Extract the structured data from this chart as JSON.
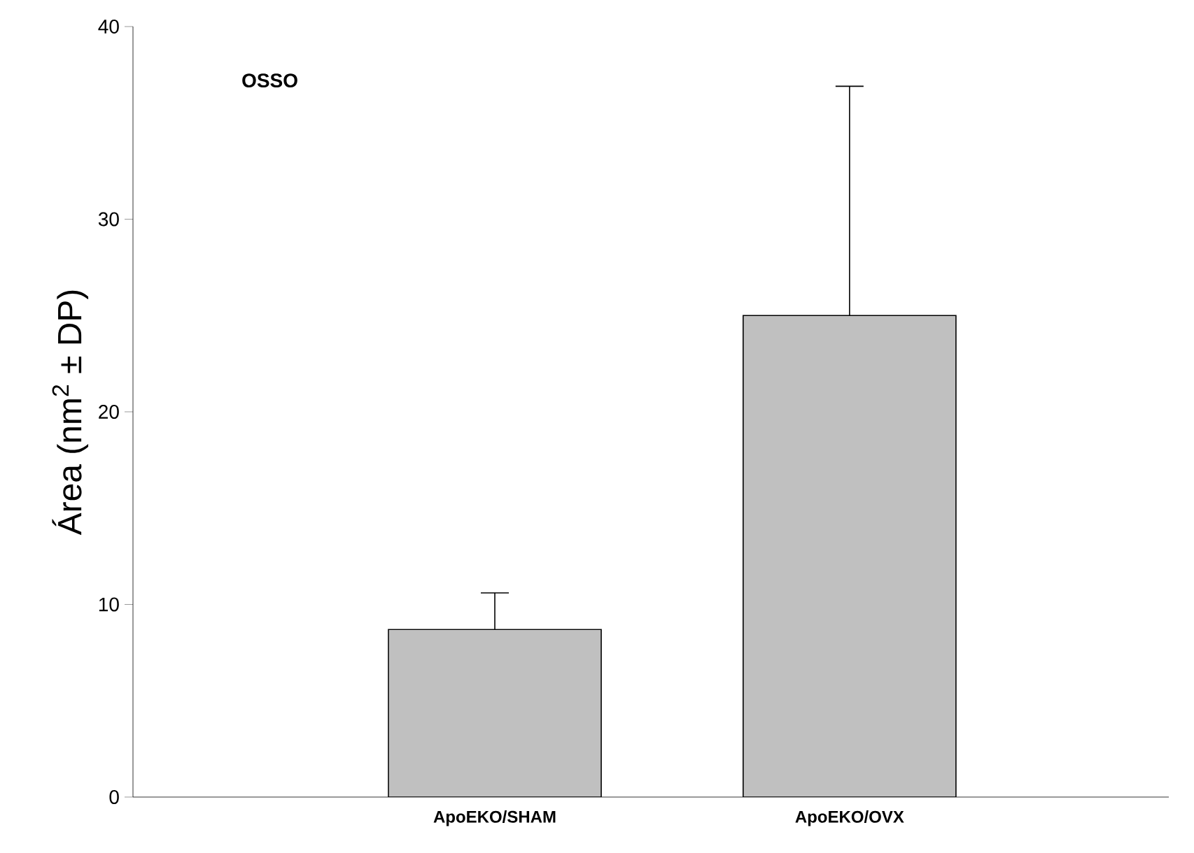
{
  "chart_data": {
    "type": "bar",
    "categories": [
      "ApoEKO/SHAM",
      "ApoEKO/OVX"
    ],
    "values": [
      8.7,
      25
    ],
    "errors": [
      [
        8.7,
        10.6
      ],
      [
        25,
        36.9
      ]
    ],
    "colors": [
      "#c0c0c0",
      "#c0c0c0"
    ],
    "ylabel": "Área (nm$^{2}$ ± DP)",
    "annotations": [
      "OSSO"
    ],
    "ylim": [
      0,
      40
    ],
    "yticks": [
      0,
      10,
      20,
      30,
      40
    ],
    "grid": false
  }
}
